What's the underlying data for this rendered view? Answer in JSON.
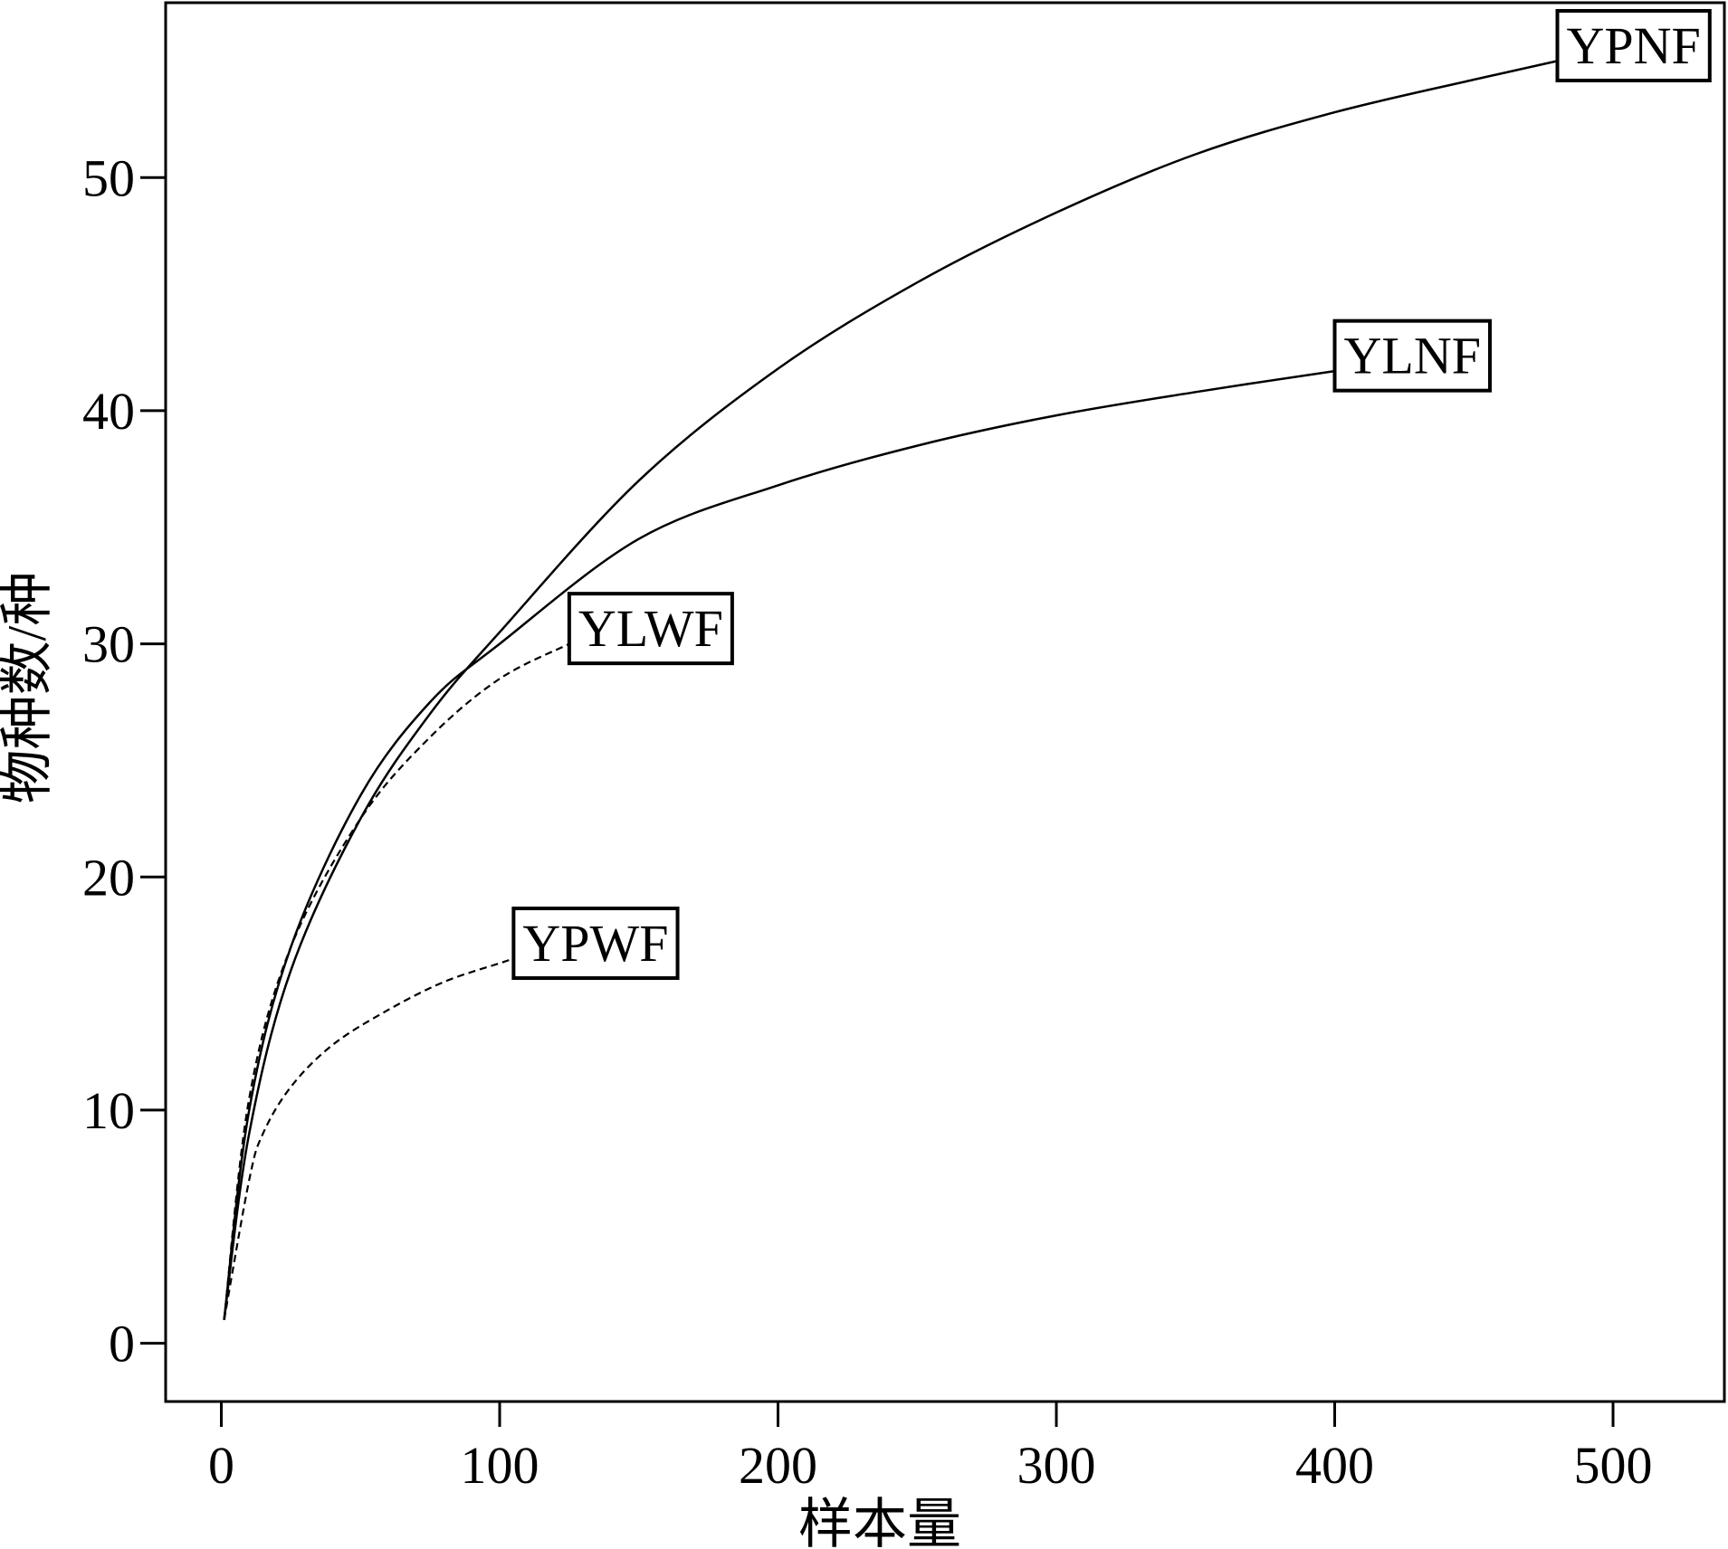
{
  "chart_data": {
    "type": "line",
    "xlabel": "样本量",
    "ylabel": "物种数/种",
    "xlim": [
      -20,
      540
    ],
    "ylim": [
      -2.5,
      57.5
    ],
    "xticks": [
      0,
      100,
      200,
      300,
      400,
      500
    ],
    "yticks": [
      0,
      10,
      20,
      30,
      40,
      50
    ],
    "grid": false,
    "legend": "none",
    "series": [
      {
        "name": "YPNF",
        "style": "solid",
        "x": [
          1,
          10,
          25,
          50,
          75,
          100,
          150,
          200,
          250,
          300,
          350,
          400,
          450,
          480
        ],
        "y": [
          1,
          9,
          16,
          22.5,
          27,
          30.5,
          37,
          41.8,
          45.5,
          48.5,
          51,
          52.8,
          54.2,
          55
        ]
      },
      {
        "name": "YLNF",
        "style": "solid",
        "x": [
          1,
          10,
          25,
          50,
          75,
          100,
          150,
          200,
          250,
          300,
          350,
          400
        ],
        "y": [
          1,
          10,
          17,
          23.5,
          27.5,
          30,
          34.5,
          36.8,
          38.5,
          39.8,
          40.8,
          41.7
        ]
      },
      {
        "name": "YLWF",
        "style": "dashed",
        "x": [
          1,
          10,
          25,
          50,
          75,
          100,
          125
        ],
        "y": [
          1,
          10.5,
          17,
          22.5,
          26,
          28.5,
          30
        ]
      },
      {
        "name": "YPWF",
        "style": "dashed",
        "x": [
          1,
          10,
          15,
          25,
          40,
          60,
          80,
          100,
          105
        ],
        "y": [
          1,
          7,
          9,
          11,
          12.8,
          14.3,
          15.5,
          16.3,
          16.5
        ]
      }
    ]
  }
}
